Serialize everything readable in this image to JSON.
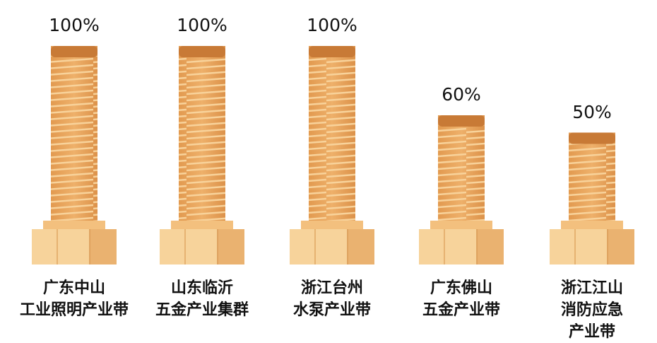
{
  "chart_data": {
    "type": "bar",
    "categories": [
      "广东中山\n工业照明产业带",
      "山东临沂\n五金产业集群",
      "浙江台州\n水泵产业带",
      "广东佛山\n五金产业带",
      "浙江江山\n消防应急产业带"
    ],
    "values": [
      100,
      100,
      100,
      60,
      50
    ],
    "value_labels": [
      "100%",
      "100%",
      "100%",
      "60%",
      "50%"
    ],
    "color": "#e9a45c"
  }
}
